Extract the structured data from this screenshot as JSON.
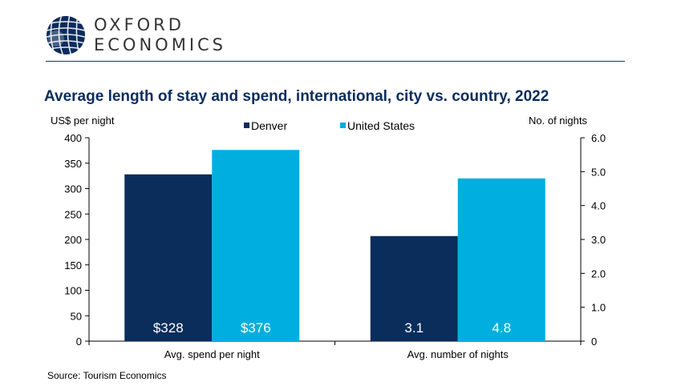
{
  "header": {
    "brand_line1": "OXFORD",
    "brand_line2": "ECONOMICS"
  },
  "chart_data": {
    "type": "bar",
    "title": "Average length of stay and spend, international, city vs. country, 2022",
    "categories": [
      "Avg. spend per night",
      "Avg. number of nights"
    ],
    "series": [
      {
        "name": "Denver",
        "color": "#0a2d5c",
        "values": [
          328,
          3.1
        ],
        "labels": [
          "$328",
          "3.1"
        ]
      },
      {
        "name": "United States",
        "color": "#00aee0",
        "values": [
          376,
          4.8
        ],
        "labels": [
          "$376",
          "4.8"
        ]
      }
    ],
    "axes": [
      {
        "side": "left",
        "label": "US$ per night",
        "range": [
          0,
          400
        ],
        "ticks": [
          "0",
          "50",
          "100",
          "150",
          "200",
          "250",
          "300",
          "350",
          "400"
        ]
      },
      {
        "side": "right",
        "label": "No. of nights",
        "range": [
          0,
          6
        ],
        "ticks": [
          "0",
          "1.0",
          "2.0",
          "3.0",
          "4.0",
          "5.0",
          "6.0"
        ]
      }
    ],
    "category_axis": [
      "left",
      "right"
    ],
    "legend_position": "top-center",
    "grid": false
  },
  "footer": {
    "source": "Source: Tourism Economics"
  }
}
